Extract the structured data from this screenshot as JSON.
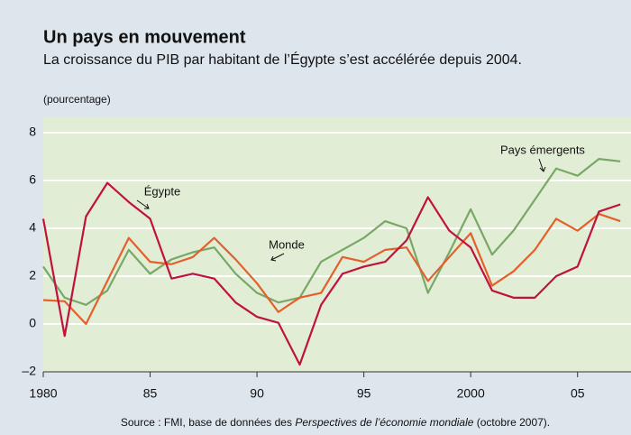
{
  "chart_data": {
    "type": "line",
    "title": "Un pays en mouvement",
    "subtitle": "La croissance du PIB par habitant de l’Égypte s’est accélérée depuis  2004.",
    "y_label": "(pourcentage)",
    "source": [
      "Source : FMI, base de données des ",
      "Perspectives de l’économie mondiale",
      " (octobre 2007)."
    ],
    "x": [
      1980,
      1981,
      1982,
      1983,
      1984,
      1985,
      1986,
      1987,
      1988,
      1989,
      1990,
      1991,
      1992,
      1993,
      1994,
      1995,
      1996,
      1997,
      1998,
      1999,
      2000,
      2001,
      2002,
      2003,
      2004,
      2005,
      2006,
      2007
    ],
    "series": [
      {
        "name": "Pays émergents",
        "color": "#78a866",
        "values": [
          2.4,
          1.1,
          0.8,
          1.4,
          3.1,
          2.1,
          2.7,
          3.0,
          3.2,
          2.1,
          1.3,
          0.9,
          1.1,
          2.6,
          3.1,
          3.6,
          4.3,
          4.0,
          1.3,
          3.0,
          4.8,
          2.9,
          3.9,
          5.2,
          6.5,
          6.2,
          6.9,
          6.8
        ]
      },
      {
        "name": "Monde",
        "color": "#e4602a",
        "values": [
          1.0,
          0.95,
          0.0,
          1.8,
          3.6,
          2.6,
          2.5,
          2.8,
          3.6,
          2.7,
          1.7,
          0.5,
          1.1,
          1.3,
          2.8,
          2.6,
          3.1,
          3.2,
          1.8,
          2.8,
          3.8,
          1.6,
          2.2,
          3.1,
          4.4,
          3.9,
          4.6,
          4.3
        ]
      },
      {
        "name": "Égypte",
        "color": "#c0123c",
        "values": [
          4.4,
          -0.5,
          4.5,
          5.9,
          5.1,
          4.4,
          1.9,
          2.1,
          1.9,
          0.9,
          0.3,
          0.05,
          -1.7,
          0.8,
          2.1,
          2.4,
          2.6,
          3.5,
          5.3,
          3.9,
          3.2,
          1.4,
          1.1,
          1.1,
          2.0,
          2.4,
          4.7,
          5.0
        ]
      }
    ],
    "xlim": [
      1980,
      2007.5
    ],
    "xticks": [
      {
        "value": 1980,
        "label": "1980"
      },
      {
        "value": 1985,
        "label": "85"
      },
      {
        "value": 1990,
        "label": "90"
      },
      {
        "value": 1995,
        "label": "95"
      },
      {
        "value": 2000,
        "label": "2000"
      },
      {
        "value": 2005,
        "label": "05"
      }
    ],
    "ylim": [
      -2,
      8
    ],
    "yticks": [
      {
        "value": -2,
        "label": "–2"
      },
      0,
      2,
      4,
      6,
      8
    ],
    "grid": true
  }
}
